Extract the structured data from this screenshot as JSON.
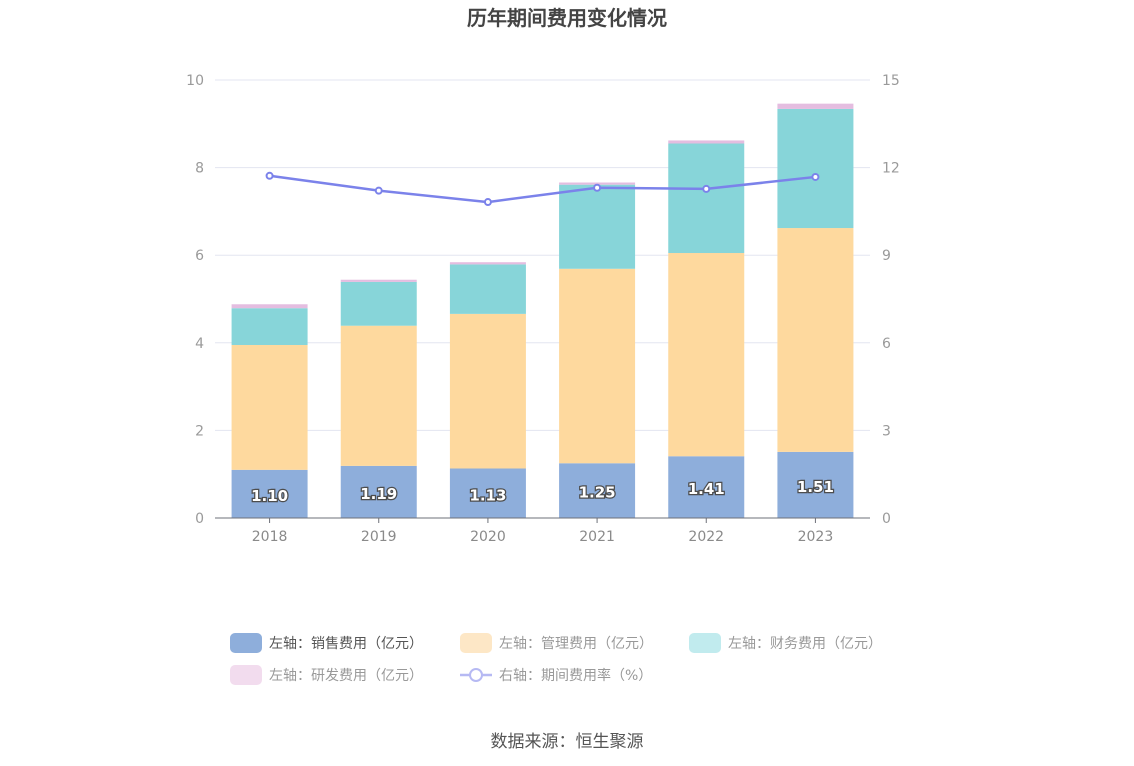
{
  "chart_data": {
    "type": "bar",
    "title": "历年期间费用变化情况",
    "categories": [
      "2018",
      "2019",
      "2020",
      "2021",
      "2022",
      "2023"
    ],
    "stacked": true,
    "series": [
      {
        "name": "左轴：销售费用（亿元）",
        "type": "bar",
        "axis": "left",
        "color": "#8eaedb",
        "legend_color": "#8eaedb",
        "values": [
          1.1,
          1.19,
          1.13,
          1.25,
          1.41,
          1.51
        ],
        "labels": [
          "1.10",
          "1.19",
          "1.13",
          "1.25",
          "1.41",
          "1.51"
        ]
      },
      {
        "name": "左轴：管理费用（亿元）",
        "type": "bar",
        "axis": "left",
        "color": "#fed99e",
        "legend_color": "#fde7c6",
        "values": [
          2.85,
          3.2,
          3.53,
          4.44,
          4.64,
          5.11
        ]
      },
      {
        "name": "左轴：财务费用（亿元）",
        "type": "bar",
        "axis": "left",
        "color": "#87d5d9",
        "legend_color": "#c1ebee",
        "values": [
          0.84,
          1.0,
          1.13,
          1.92,
          2.5,
          2.72
        ]
      },
      {
        "name": "左轴：研发费用（亿元）",
        "type": "bar",
        "axis": "left",
        "color": "#e4bde0",
        "legend_color": "#f2dcee",
        "values": [
          0.09,
          0.05,
          0.05,
          0.05,
          0.07,
          0.12
        ]
      },
      {
        "name": "右轴：期间费用率（%）",
        "type": "line",
        "axis": "right",
        "color": "#7b82ea",
        "legend_color": "#b6b9f3",
        "values": [
          11.72,
          11.21,
          10.82,
          11.31,
          11.27,
          11.68
        ]
      }
    ],
    "y_left": {
      "min": 0,
      "max": 10,
      "ticks": [
        "0",
        "2",
        "4",
        "6",
        "8",
        "10"
      ]
    },
    "y_right": {
      "min": 0,
      "max": 15,
      "ticks": [
        "0",
        "3",
        "6",
        "9",
        "12",
        "15"
      ]
    },
    "grid": true,
    "legend_position": "bottom"
  },
  "source": "数据来源：恒生聚源"
}
